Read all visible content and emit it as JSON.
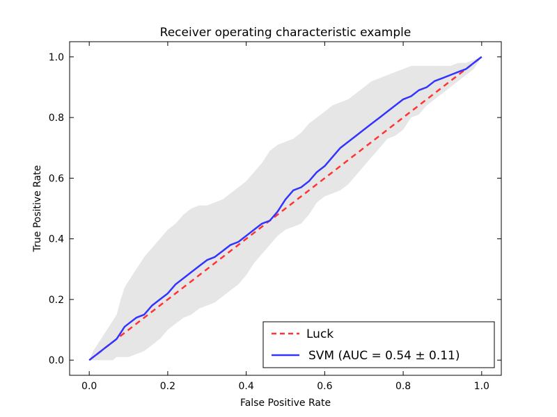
{
  "chart_data": {
    "type": "line",
    "title": "Receiver operating characteristic example",
    "xlabel": "False Positive Rate",
    "ylabel": "True Positive Rate",
    "xlim": [
      -0.05,
      1.05
    ],
    "ylim": [
      -0.05,
      1.05
    ],
    "xticks": [
      0.0,
      0.2,
      0.4,
      0.6,
      0.8,
      1.0
    ],
    "yticks": [
      0.0,
      0.2,
      0.4,
      0.6,
      0.8,
      1.0
    ],
    "xtick_labels": [
      "0.0",
      "0.2",
      "0.4",
      "0.6",
      "0.8",
      "1.0"
    ],
    "ytick_labels": [
      "0.0",
      "0.2",
      "0.4",
      "0.6",
      "0.8",
      "1.0"
    ],
    "grid": false,
    "legend_position": "lower-right",
    "series": [
      {
        "name": "Luck",
        "style": "dashed",
        "color": "#ff3333",
        "x": [
          0.0,
          1.0
        ],
        "y": [
          0.0,
          1.0
        ]
      },
      {
        "name": "SVM (AUC = 0.54 ± 0.11)",
        "style": "solid",
        "color": "#3333ff",
        "x": [
          0.0,
          0.01,
          0.02,
          0.03,
          0.04,
          0.05,
          0.06,
          0.07,
          0.08,
          0.09,
          0.1,
          0.12,
          0.14,
          0.16,
          0.18,
          0.2,
          0.22,
          0.24,
          0.26,
          0.28,
          0.3,
          0.32,
          0.34,
          0.36,
          0.38,
          0.4,
          0.42,
          0.44,
          0.46,
          0.48,
          0.5,
          0.52,
          0.54,
          0.56,
          0.58,
          0.6,
          0.62,
          0.64,
          0.66,
          0.68,
          0.7,
          0.72,
          0.74,
          0.76,
          0.78,
          0.8,
          0.82,
          0.84,
          0.86,
          0.88,
          0.9,
          0.92,
          0.94,
          0.96,
          0.98,
          1.0
        ],
        "y": [
          0.0,
          0.01,
          0.02,
          0.03,
          0.04,
          0.05,
          0.06,
          0.07,
          0.09,
          0.11,
          0.12,
          0.14,
          0.15,
          0.18,
          0.2,
          0.22,
          0.25,
          0.27,
          0.29,
          0.31,
          0.33,
          0.34,
          0.36,
          0.38,
          0.39,
          0.41,
          0.43,
          0.45,
          0.46,
          0.49,
          0.53,
          0.56,
          0.57,
          0.59,
          0.62,
          0.64,
          0.67,
          0.7,
          0.72,
          0.74,
          0.76,
          0.78,
          0.8,
          0.82,
          0.84,
          0.86,
          0.87,
          0.89,
          0.9,
          0.92,
          0.93,
          0.94,
          0.95,
          0.96,
          0.98,
          1.0
        ],
        "band_upper": [
          0.0,
          0.03,
          0.05,
          0.07,
          0.09,
          0.11,
          0.13,
          0.15,
          0.2,
          0.24,
          0.26,
          0.3,
          0.34,
          0.37,
          0.4,
          0.43,
          0.45,
          0.48,
          0.5,
          0.51,
          0.51,
          0.52,
          0.53,
          0.55,
          0.57,
          0.59,
          0.62,
          0.65,
          0.69,
          0.71,
          0.72,
          0.73,
          0.75,
          0.78,
          0.8,
          0.82,
          0.84,
          0.85,
          0.86,
          0.88,
          0.9,
          0.92,
          0.93,
          0.94,
          0.95,
          0.96,
          0.97,
          0.97,
          0.97,
          0.97,
          0.97,
          0.97,
          0.98,
          0.98,
          0.99,
          1.0
        ],
        "band_lower": [
          0.0,
          0.0,
          0.0,
          0.0,
          0.0,
          0.0,
          0.0,
          0.01,
          0.01,
          0.01,
          0.01,
          0.02,
          0.03,
          0.05,
          0.07,
          0.1,
          0.12,
          0.14,
          0.15,
          0.17,
          0.18,
          0.19,
          0.21,
          0.23,
          0.25,
          0.28,
          0.32,
          0.35,
          0.38,
          0.41,
          0.43,
          0.44,
          0.45,
          0.48,
          0.52,
          0.54,
          0.55,
          0.56,
          0.58,
          0.61,
          0.64,
          0.67,
          0.7,
          0.73,
          0.74,
          0.76,
          0.8,
          0.81,
          0.84,
          0.86,
          0.88,
          0.9,
          0.92,
          0.94,
          0.96,
          1.0
        ]
      }
    ],
    "band_color": "#e6e6e6"
  }
}
